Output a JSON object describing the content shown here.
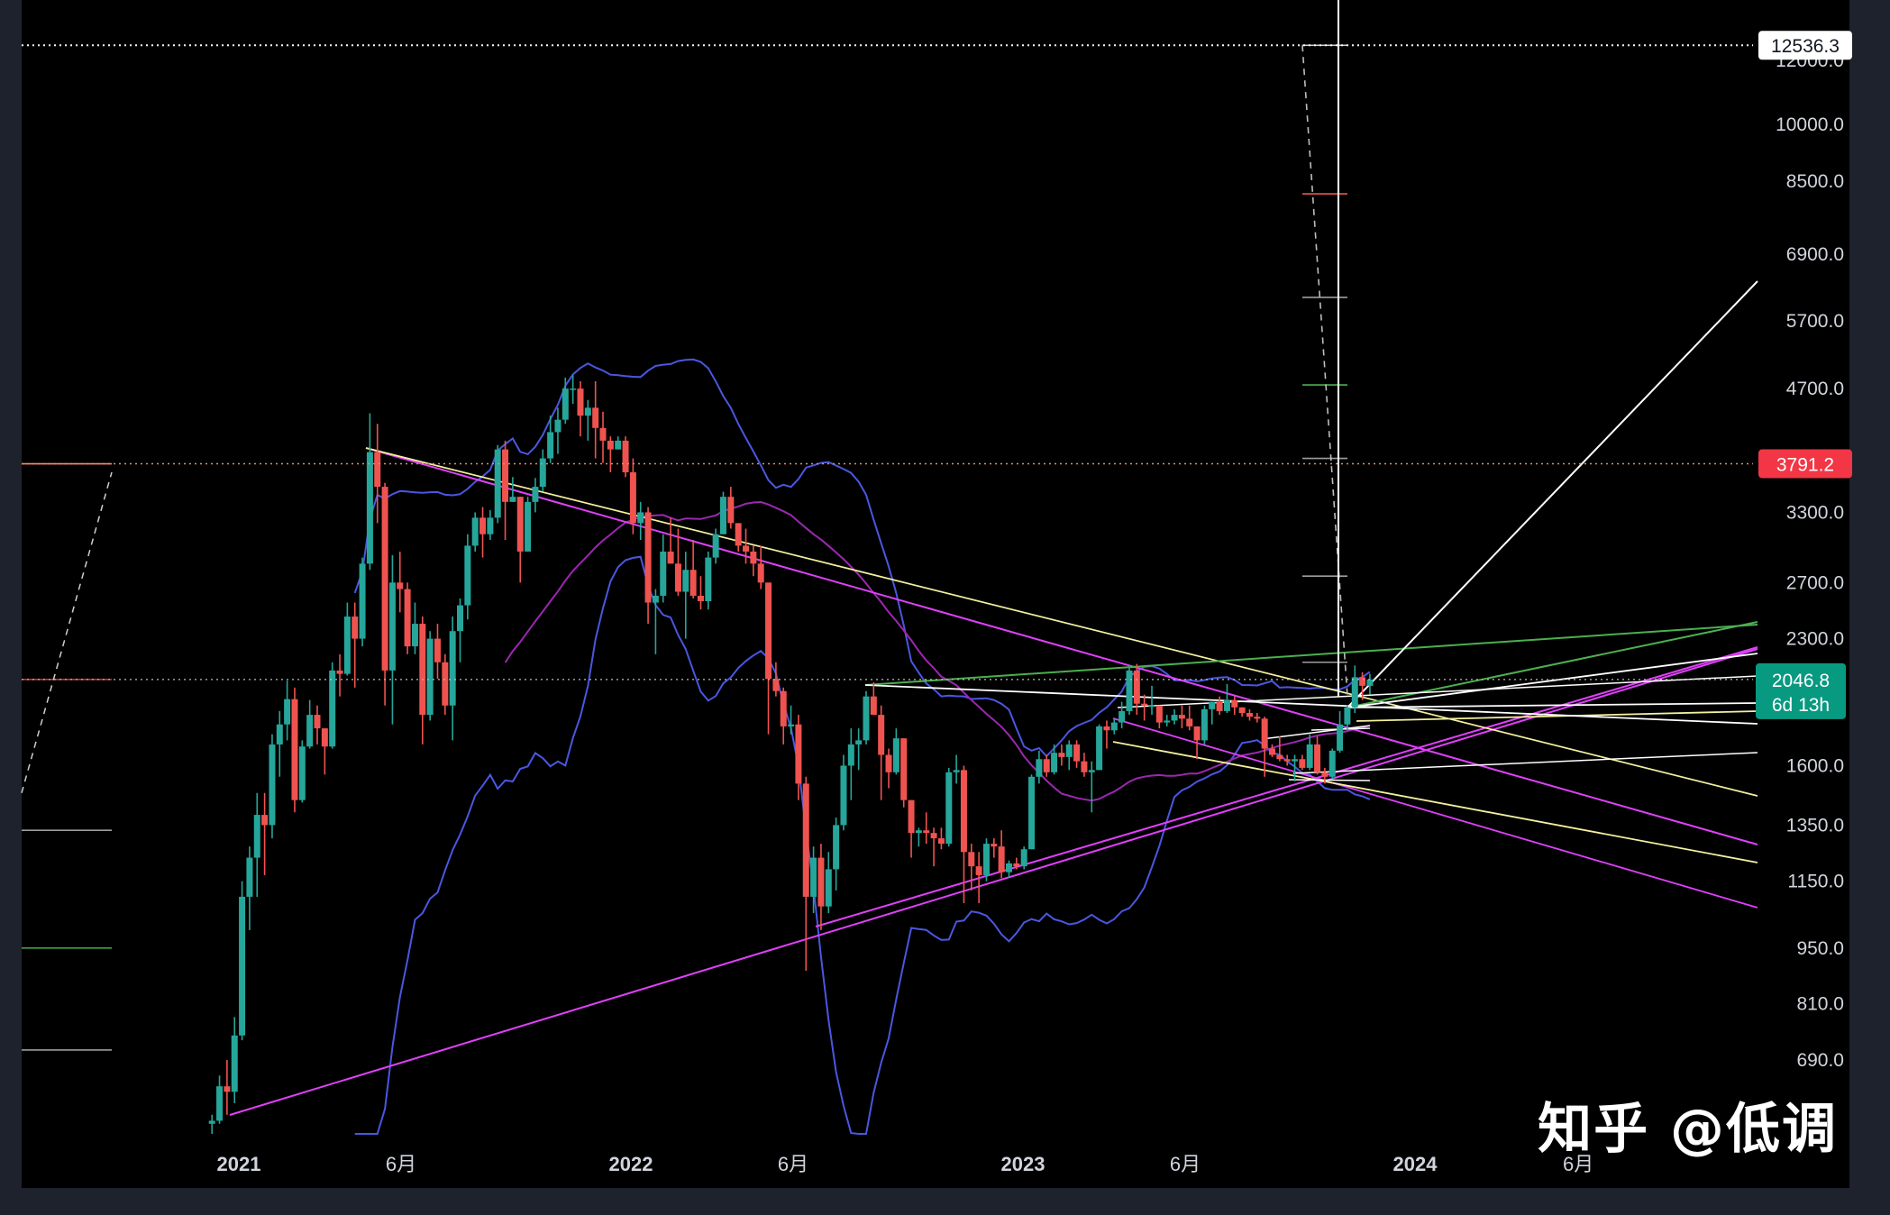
{
  "chart_data": {
    "type": "candlestick",
    "title": "",
    "xlabel": "",
    "ylabel": "",
    "scale": "log",
    "ylim": [
      500,
      13000
    ],
    "grid": false,
    "x_ticks": [
      {
        "label": "2021",
        "date": "2021-01-01",
        "bold": true
      },
      {
        "label": "6月",
        "date": "2021-06-01",
        "bold": false
      },
      {
        "label": "2022",
        "date": "2022-01-01",
        "bold": true
      },
      {
        "label": "6月",
        "date": "2022-06-01",
        "bold": false
      },
      {
        "label": "2023",
        "date": "2023-01-01",
        "bold": true
      },
      {
        "label": "6月",
        "date": "2023-06-01",
        "bold": false
      },
      {
        "label": "2024",
        "date": "2024-01-01",
        "bold": true
      },
      {
        "label": "6月",
        "date": "2024-06-01",
        "bold": false
      }
    ],
    "y_ticks": [
      {
        "label": "12000.0",
        "value": 12000
      },
      {
        "label": "10000.0",
        "value": 10000
      },
      {
        "label": "8500.0",
        "value": 8500
      },
      {
        "label": "6900.0",
        "value": 6900
      },
      {
        "label": "5700.0",
        "value": 5700
      },
      {
        "label": "4700.0",
        "value": 4700
      },
      {
        "label": "3300.0",
        "value": 3300
      },
      {
        "label": "2700.0",
        "value": 2700
      },
      {
        "label": "2300.0",
        "value": 2300
      },
      {
        "label": "1600.0",
        "value": 1600
      },
      {
        "label": "1350.0",
        "value": 1350
      },
      {
        "label": "1150.0",
        "value": 1150
      },
      {
        "label": "950.0",
        "value": 950
      },
      {
        "label": "810.0",
        "value": 810
      },
      {
        "label": "690.0",
        "value": 690
      }
    ],
    "price_labels": [
      {
        "label": "12536.3",
        "value": 12536.3,
        "style": "white"
      },
      {
        "label": "3791.2",
        "value": 3791.2,
        "style": "red"
      }
    ],
    "current_price": {
      "label": "2046.8",
      "countdown": "6d 13h",
      "value": 2046.8,
      "color": "#089981"
    },
    "colors": {
      "up": "#26a69a",
      "down": "#ef5350",
      "band": "#4a57e0",
      "ma": "#9c27b0",
      "fan_magenta": "#e040fb",
      "fan_yellow": "#f5f0a0",
      "fan_green": "#4caf50",
      "fan_white": "#ffffff"
    },
    "candles_weekly": [
      [
        "2020-12-07",
        575,
        590,
        550,
        580
      ],
      [
        "2020-12-14",
        580,
        660,
        575,
        640
      ],
      [
        "2020-12-21",
        640,
        690,
        590,
        630
      ],
      [
        "2020-12-28",
        630,
        780,
        610,
        740
      ],
      [
        "2021-01-04",
        740,
        1150,
        730,
        1100
      ],
      [
        "2021-01-11",
        1100,
        1270,
        1000,
        1230
      ],
      [
        "2021-01-18",
        1230,
        1480,
        1100,
        1390
      ],
      [
        "2021-01-25",
        1390,
        1480,
        1170,
        1350
      ],
      [
        "2021-02-01",
        1350,
        1750,
        1300,
        1700
      ],
      [
        "2021-02-08",
        1700,
        1870,
        1550,
        1800
      ],
      [
        "2021-02-15",
        1800,
        2040,
        1720,
        1935
      ],
      [
        "2021-02-22",
        1935,
        2000,
        1400,
        1450
      ],
      [
        "2021-03-01",
        1450,
        1720,
        1440,
        1690
      ],
      [
        "2021-03-08",
        1690,
        1930,
        1680,
        1850
      ],
      [
        "2021-03-15",
        1850,
        1900,
        1700,
        1780
      ],
      [
        "2021-03-22",
        1780,
        1780,
        1560,
        1690
      ],
      [
        "2021-03-29",
        1690,
        2150,
        1680,
        2100
      ],
      [
        "2021-04-05",
        2100,
        2200,
        1950,
        2080
      ],
      [
        "2021-04-12",
        2080,
        2550,
        2070,
        2450
      ],
      [
        "2021-04-19",
        2450,
        2550,
        2000,
        2300
      ],
      [
        "2021-04-26",
        2300,
        2900,
        2250,
        2850
      ],
      [
        "2021-05-03",
        2850,
        4380,
        2800,
        3920
      ],
      [
        "2021-05-10",
        3920,
        4250,
        3200,
        3550
      ],
      [
        "2021-05-17",
        3550,
        3590,
        1900,
        2100
      ],
      [
        "2021-05-24",
        2100,
        2920,
        1800,
        2700
      ],
      [
        "2021-05-31",
        2700,
        2950,
        2480,
        2650
      ],
      [
        "2021-06-07",
        2650,
        2700,
        2200,
        2250
      ],
      [
        "2021-06-14",
        2250,
        2550,
        2200,
        2400
      ],
      [
        "2021-06-21",
        2400,
        2450,
        1700,
        1850
      ],
      [
        "2021-06-28",
        1850,
        2350,
        1820,
        2300
      ],
      [
        "2021-07-05",
        2300,
        2400,
        2050,
        2150
      ],
      [
        "2021-07-12",
        2150,
        2200,
        1850,
        1900
      ],
      [
        "2021-07-19",
        1900,
        2450,
        1720,
        2350
      ],
      [
        "2021-07-26",
        2350,
        2580,
        2150,
        2530
      ],
      [
        "2021-08-02",
        2530,
        3100,
        2430,
        3000
      ],
      [
        "2021-08-09",
        3000,
        3300,
        2950,
        3250
      ],
      [
        "2021-08-16",
        3250,
        3350,
        2900,
        3100
      ],
      [
        "2021-08-23",
        3100,
        3320,
        3050,
        3250
      ],
      [
        "2021-08-30",
        3250,
        4000,
        3200,
        3950
      ],
      [
        "2021-09-06",
        3950,
        4050,
        3050,
        3400
      ],
      [
        "2021-09-13",
        3400,
        3650,
        3400,
        3450
      ],
      [
        "2021-09-20",
        3450,
        3300,
        2700,
        2950
      ],
      [
        "2021-09-27",
        2950,
        3450,
        2950,
        3400
      ],
      [
        "2021-10-04",
        3400,
        3640,
        3300,
        3550
      ],
      [
        "2021-10-11",
        3550,
        3950,
        3500,
        3850
      ],
      [
        "2021-10-18",
        3850,
        4350,
        3800,
        4150
      ],
      [
        "2021-10-25",
        4150,
        4450,
        3900,
        4300
      ],
      [
        "2021-11-01",
        4300,
        4850,
        4250,
        4700
      ],
      [
        "2021-11-08",
        4700,
        4880,
        4500,
        4700
      ],
      [
        "2021-11-15",
        4700,
        4800,
        4100,
        4350
      ],
      [
        "2021-11-22",
        4350,
        4550,
        4050,
        4450
      ],
      [
        "2021-11-29",
        4450,
        4800,
        3850,
        4200
      ],
      [
        "2021-12-06",
        4200,
        4400,
        3800,
        4050
      ],
      [
        "2021-12-13",
        4050,
        4100,
        3700,
        3950
      ],
      [
        "2021-12-20",
        3950,
        4100,
        3950,
        4050
      ],
      [
        "2021-12-27",
        4050,
        4100,
        3650,
        3700
      ],
      [
        "2022-01-03",
        3700,
        3850,
        3100,
        3200
      ],
      [
        "2022-01-10",
        3200,
        3400,
        3050,
        3300
      ],
      [
        "2022-01-17",
        3300,
        3350,
        2400,
        2550
      ],
      [
        "2022-01-24",
        2550,
        2650,
        2200,
        2600
      ],
      [
        "2022-01-31",
        2600,
        3100,
        2550,
        2950
      ],
      [
        "2022-02-07",
        2950,
        3250,
        2850,
        2850
      ],
      [
        "2022-02-14",
        2850,
        3150,
        2600,
        2630
      ],
      [
        "2022-02-21",
        2630,
        2950,
        2300,
        2800
      ],
      [
        "2022-02-28",
        2800,
        3050,
        2580,
        2600
      ],
      [
        "2022-03-07",
        2600,
        2750,
        2500,
        2560
      ],
      [
        "2022-03-14",
        2560,
        2950,
        2500,
        2900
      ],
      [
        "2022-03-21",
        2900,
        3150,
        2850,
        3100
      ],
      [
        "2022-03-28",
        3100,
        3500,
        3250,
        3450
      ],
      [
        "2022-04-04",
        3450,
        3550,
        3150,
        3200
      ],
      [
        "2022-04-11",
        3200,
        3100,
        2950,
        3000
      ],
      [
        "2022-04-18",
        3000,
        3150,
        2850,
        2950
      ],
      [
        "2022-04-25",
        2950,
        3000,
        2750,
        2850
      ],
      [
        "2022-05-02",
        2850,
        3000,
        2650,
        2700
      ],
      [
        "2022-05-09",
        2700,
        2550,
        1750,
        2050
      ],
      [
        "2022-05-16",
        2050,
        2150,
        1950,
        1980
      ],
      [
        "2022-05-23",
        1980,
        2000,
        1700,
        1790
      ],
      [
        "2022-05-30",
        1790,
        1900,
        1750,
        1800
      ],
      [
        "2022-06-06",
        1800,
        1850,
        1450,
        1520
      ],
      [
        "2022-06-13",
        1520,
        1550,
        890,
        1100
      ],
      [
        "2022-06-20",
        1100,
        1270,
        1050,
        1230
      ],
      [
        "2022-06-27",
        1230,
        1280,
        1000,
        1070
      ],
      [
        "2022-07-04",
        1070,
        1250,
        1050,
        1190
      ],
      [
        "2022-07-11",
        1190,
        1380,
        1120,
        1350
      ],
      [
        "2022-07-18",
        1350,
        1650,
        1330,
        1600
      ],
      [
        "2022-07-25",
        1600,
        1780,
        1450,
        1700
      ],
      [
        "2022-08-01",
        1700,
        1780,
        1580,
        1720
      ],
      [
        "2022-08-08",
        1720,
        1980,
        1700,
        1950
      ],
      [
        "2022-08-15",
        1950,
        2030,
        1850,
        1850
      ],
      [
        "2022-08-22",
        1850,
        1900,
        1450,
        1650
      ],
      [
        "2022-08-29",
        1650,
        1680,
        1500,
        1570
      ],
      [
        "2022-09-05",
        1570,
        1780,
        1560,
        1730
      ],
      [
        "2022-09-12",
        1730,
        1720,
        1420,
        1450
      ],
      [
        "2022-09-19",
        1450,
        1450,
        1230,
        1320
      ],
      [
        "2022-09-26",
        1320,
        1340,
        1270,
        1330
      ],
      [
        "2022-10-03",
        1330,
        1400,
        1280,
        1320
      ],
      [
        "2022-10-10",
        1320,
        1340,
        1200,
        1300
      ],
      [
        "2022-10-17",
        1300,
        1340,
        1260,
        1280
      ],
      [
        "2022-10-24",
        1280,
        1590,
        1270,
        1570
      ],
      [
        "2022-10-31",
        1570,
        1650,
        1520,
        1580
      ],
      [
        "2022-11-07",
        1580,
        1600,
        1080,
        1250
      ],
      [
        "2022-11-14",
        1250,
        1280,
        1120,
        1200
      ],
      [
        "2022-11-21",
        1200,
        1250,
        1080,
        1170
      ],
      [
        "2022-11-28",
        1170,
        1300,
        1150,
        1280
      ],
      [
        "2022-12-05",
        1280,
        1300,
        1230,
        1270
      ],
      [
        "2022-12-12",
        1270,
        1330,
        1160,
        1180
      ],
      [
        "2022-12-19",
        1180,
        1220,
        1160,
        1210
      ],
      [
        "2022-12-26",
        1210,
        1230,
        1190,
        1200
      ],
      [
        "2023-01-02",
        1200,
        1270,
        1190,
        1260
      ],
      [
        "2023-01-09",
        1260,
        1560,
        1260,
        1550
      ],
      [
        "2023-01-16",
        1550,
        1670,
        1520,
        1630
      ],
      [
        "2023-01-23",
        1630,
        1650,
        1550,
        1570
      ],
      [
        "2023-01-30",
        1570,
        1700,
        1560,
        1660
      ],
      [
        "2023-02-06",
        1660,
        1700,
        1600,
        1640
      ],
      [
        "2023-02-13",
        1640,
        1720,
        1580,
        1700
      ],
      [
        "2023-02-20",
        1700,
        1720,
        1590,
        1620
      ],
      [
        "2023-02-27",
        1620,
        1660,
        1550,
        1570
      ],
      [
        "2023-03-06",
        1570,
        1620,
        1400,
        1580
      ],
      [
        "2023-03-13",
        1580,
        1800,
        1650,
        1790
      ],
      [
        "2023-03-20",
        1790,
        1820,
        1680,
        1770
      ],
      [
        "2023-03-27",
        1770,
        1830,
        1750,
        1810
      ],
      [
        "2023-04-03",
        1810,
        1920,
        1780,
        1870
      ],
      [
        "2023-04-10",
        1870,
        2130,
        1850,
        2100
      ],
      [
        "2023-04-17",
        2100,
        2140,
        1850,
        1910
      ],
      [
        "2023-04-24",
        1910,
        1960,
        1820,
        1900
      ],
      [
        "2023-05-01",
        1900,
        2010,
        1850,
        1900
      ],
      [
        "2023-05-08",
        1900,
        1870,
        1780,
        1810
      ],
      [
        "2023-05-15",
        1810,
        1850,
        1790,
        1820
      ],
      [
        "2023-05-22",
        1820,
        1880,
        1800,
        1850
      ],
      [
        "2023-05-29",
        1850,
        1900,
        1780,
        1830
      ],
      [
        "2023-06-05",
        1830,
        1900,
        1770,
        1790
      ],
      [
        "2023-06-12",
        1790,
        1760,
        1630,
        1720
      ],
      [
        "2023-06-19",
        1720,
        1900,
        1700,
        1880
      ],
      [
        "2023-06-26",
        1880,
        1920,
        1800,
        1920
      ],
      [
        "2023-07-03",
        1920,
        1950,
        1850,
        1870
      ],
      [
        "2023-07-10",
        1870,
        2020,
        1860,
        1930
      ],
      [
        "2023-07-17",
        1930,
        1950,
        1850,
        1890
      ],
      [
        "2023-07-24",
        1890,
        1890,
        1840,
        1860
      ],
      [
        "2023-07-31",
        1860,
        1880,
        1820,
        1840
      ],
      [
        "2023-08-07",
        1840,
        1860,
        1810,
        1830
      ],
      [
        "2023-08-14",
        1830,
        1840,
        1550,
        1680
      ],
      [
        "2023-08-21",
        1680,
        1700,
        1640,
        1650
      ],
      [
        "2023-08-28",
        1650,
        1740,
        1620,
        1630
      ],
      [
        "2023-09-04",
        1630,
        1650,
        1600,
        1620
      ],
      [
        "2023-09-11",
        1620,
        1650,
        1530,
        1630
      ],
      [
        "2023-09-18",
        1630,
        1650,
        1580,
        1590
      ],
      [
        "2023-09-25",
        1590,
        1750,
        1580,
        1700
      ],
      [
        "2023-10-02",
        1700,
        1740,
        1560,
        1570
      ],
      [
        "2023-10-09",
        1570,
        1590,
        1520,
        1550
      ],
      [
        "2023-10-16",
        1550,
        1680,
        1540,
        1670
      ],
      [
        "2023-10-23",
        1670,
        1870,
        1660,
        1800
      ],
      [
        "2023-10-30",
        1800,
        1900,
        1770,
        1890
      ],
      [
        "2023-11-06",
        1890,
        2130,
        1860,
        2060
      ],
      [
        "2023-11-13",
        2060,
        2090,
        1930,
        2010
      ],
      [
        "2023-11-20",
        2010,
        2080,
        1960,
        2046.8
      ]
    ]
  }
}
